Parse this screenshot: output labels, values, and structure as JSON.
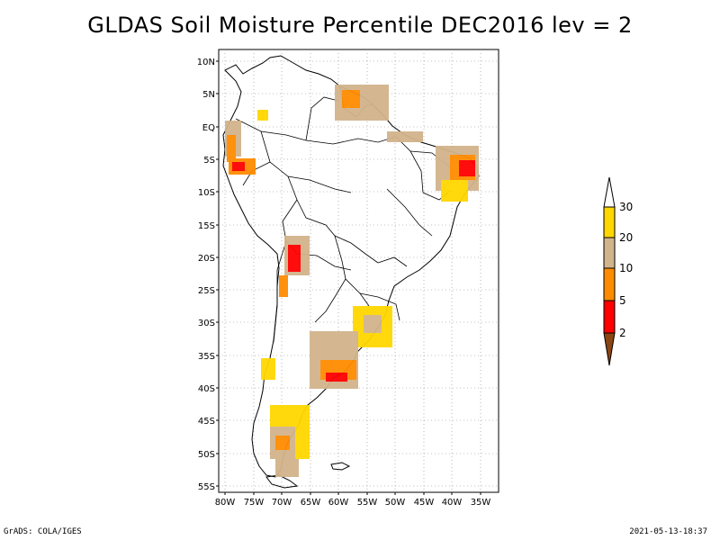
{
  "title": "GLDAS Soil Moisture Percentile DEC2016 lev = 2",
  "footer": {
    "left": "GrADS: COLA/IGES",
    "right": "2021-05-13-18:37"
  },
  "map": {
    "lat_labels": [
      "10N",
      "5N",
      "EQ",
      "5S",
      "10S",
      "15S",
      "20S",
      "25S",
      "30S",
      "35S",
      "40S",
      "45S",
      "50S",
      "55S"
    ],
    "lon_labels": [
      "80W",
      "75W",
      "70W",
      "65W",
      "60W",
      "55W",
      "50W",
      "45W",
      "40W",
      "35W"
    ],
    "lon_range": [
      -81,
      -32
    ],
    "lat_range": [
      -56,
      12
    ],
    "grid": true
  },
  "legend": {
    "labels": [
      "30",
      "20",
      "10",
      "5",
      "2"
    ],
    "colors": [
      "#ffffff",
      "#ffd700",
      "#d2b48c",
      "#ff8c00",
      "#ff0000",
      "#8b4513"
    ]
  }
}
